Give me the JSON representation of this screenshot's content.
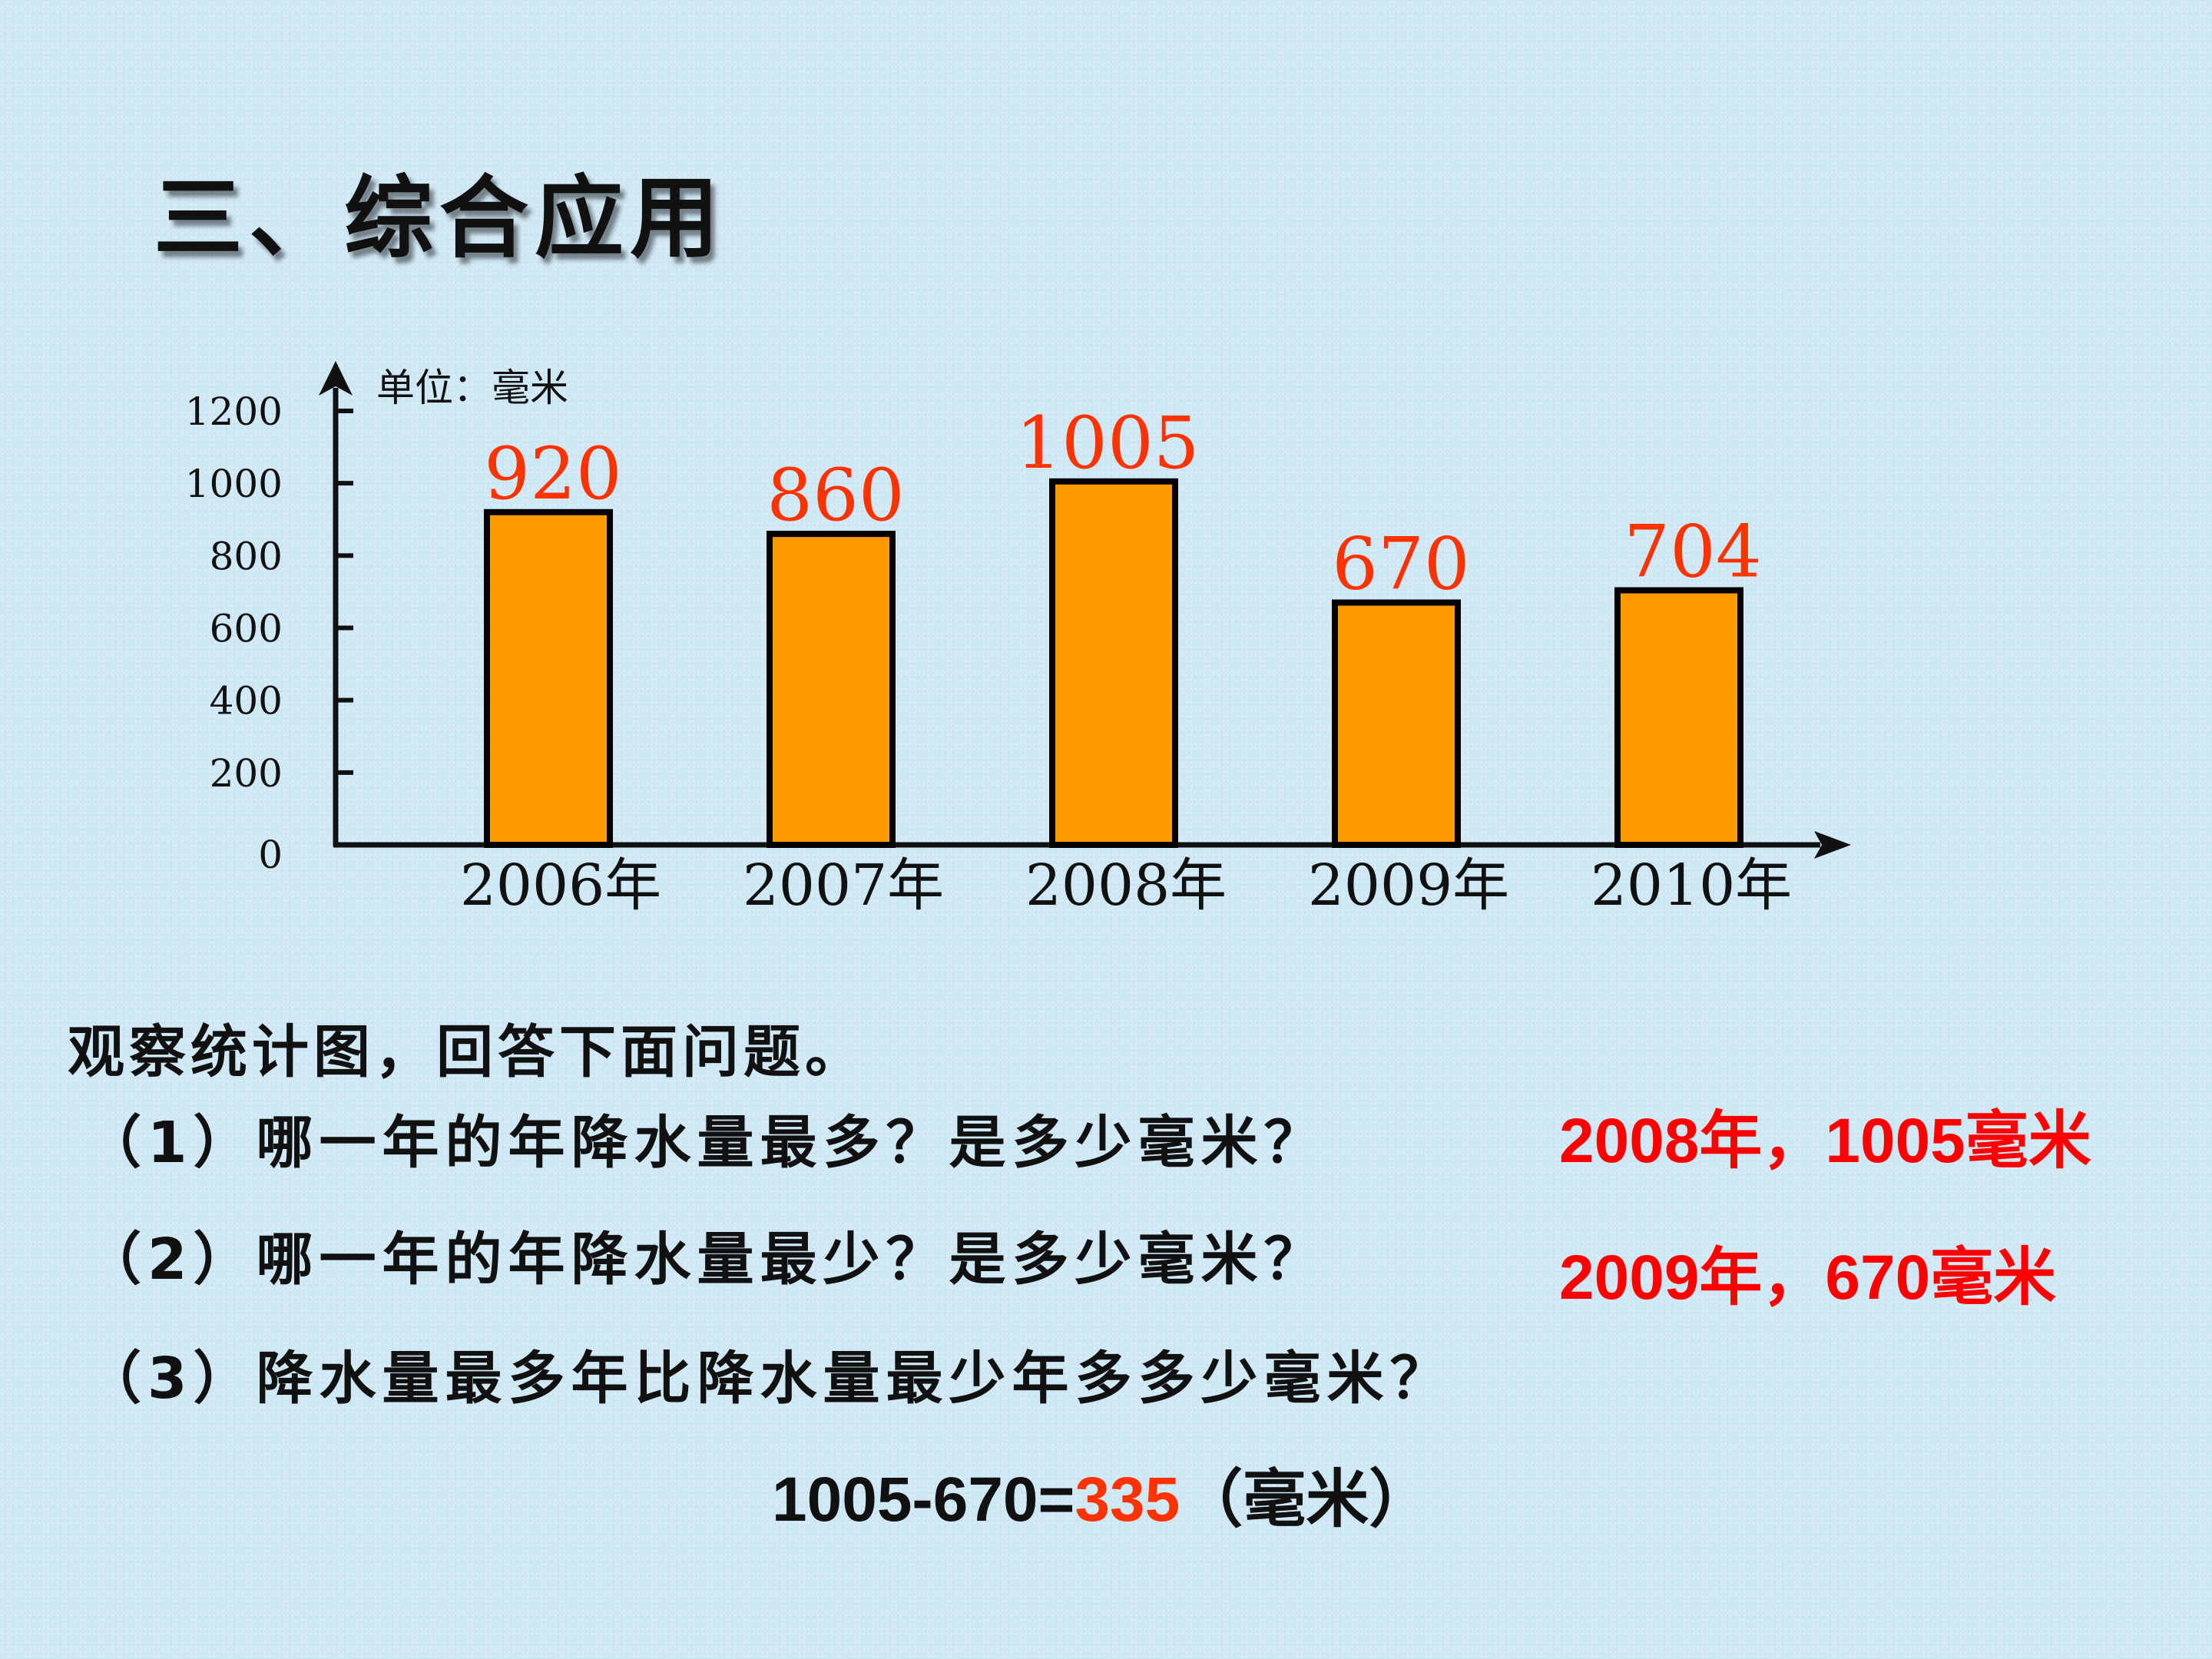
{
  "title": "三、综合应用",
  "chart_data": {
    "type": "bar",
    "categories": [
      "2006年",
      "2007年",
      "2008年",
      "2009年",
      "2010年"
    ],
    "values": [
      920,
      860,
      1005,
      670,
      704
    ],
    "data_labels": [
      "920",
      "860",
      "1005",
      "670",
      "704"
    ],
    "y_ticks": [
      0,
      200,
      400,
      600,
      800,
      1000,
      1200
    ],
    "ylim": [
      0,
      1200
    ],
    "unit_label": "单位：毫米",
    "title": "",
    "xlabel": "",
    "ylabel": "",
    "grid": false,
    "bar_color": "#ff9900",
    "label_color": "#ff3300"
  },
  "questions": {
    "intro": "观察统计图，回答下面问题。",
    "q1": "（1）哪一年的年降水量最多？是多少毫米？",
    "q2": "（2）哪一年的年降水量最少？是多少毫米？",
    "q3": "（3）降水量最多年比降水量最少年多多少毫米？"
  },
  "answers": {
    "a1": "2008年，1005毫米",
    "a2": "2009年，670毫米",
    "equation_prefix": "1005-670=",
    "equation_result": "335",
    "equation_suffix": "（毫米）"
  },
  "colors": {
    "answer": "#ff0000",
    "result": "#ff3300",
    "background": "#cfe8f5"
  }
}
